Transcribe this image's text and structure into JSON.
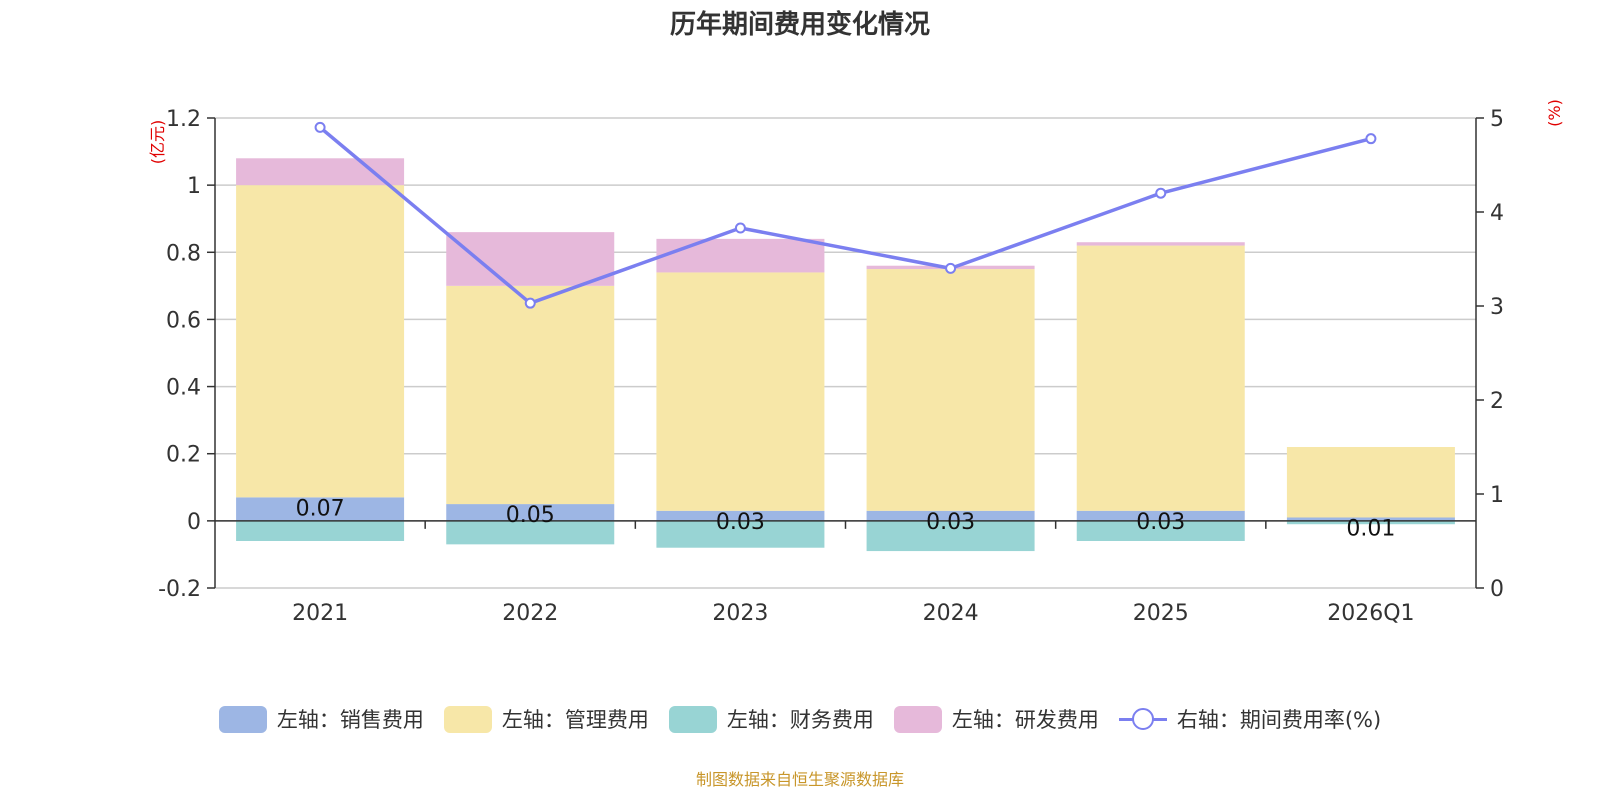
{
  "chart_data": {
    "type": "bar",
    "title": "历年期间费用变化情况",
    "categories": [
      "2021",
      "2022",
      "2023",
      "2024",
      "2025",
      "2026Q1"
    ],
    "ylabel_left": "(亿元)",
    "ylabel_right": "(%)",
    "ylim_left": [
      -0.2,
      1.2
    ],
    "yticks_left": [
      "1.2",
      "1",
      "0.8",
      "0.6",
      "0.4",
      "0.2",
      "0",
      "-0.2"
    ],
    "ylim_right": [
      0,
      5
    ],
    "yticks_right": [
      "5",
      "4",
      "3",
      "2",
      "1",
      "0"
    ],
    "series": [
      {
        "name": "左轴：销售费用",
        "axis": "left",
        "color": "#9db6e4",
        "values": [
          0.07,
          0.05,
          0.03,
          0.03,
          0.03,
          0.01
        ],
        "labels": [
          "0.07",
          "0.05",
          "0.03",
          "0.03",
          "0.03",
          "0.01"
        ]
      },
      {
        "name": "左轴：管理费用",
        "axis": "left",
        "color": "#f7e7a8",
        "values": [
          0.93,
          0.65,
          0.71,
          0.72,
          0.79,
          0.21
        ]
      },
      {
        "name": "左轴：财务费用",
        "axis": "left",
        "color": "#98d4d4",
        "values": [
          -0.06,
          -0.07,
          -0.08,
          -0.09,
          -0.06,
          -0.01
        ]
      },
      {
        "name": "左轴：研发费用",
        "axis": "left",
        "color": "#e6b9da",
        "values": [
          0.08,
          0.16,
          0.1,
          0.01,
          0.01,
          0.0
        ]
      },
      {
        "name": "右轴：期间费用率(%)",
        "axis": "right",
        "type": "line",
        "color": "#7b7ff0",
        "values": [
          4.9,
          3.03,
          3.83,
          3.4,
          4.2,
          4.78
        ]
      }
    ]
  },
  "legend": [
    {
      "label": "左轴：销售费用",
      "color": "#9db6e4",
      "kind": "bar"
    },
    {
      "label": "左轴：管理费用",
      "color": "#f7e7a8",
      "kind": "bar"
    },
    {
      "label": "左轴：财务费用",
      "color": "#98d4d4",
      "kind": "bar"
    },
    {
      "label": "左轴：研发费用",
      "color": "#e6b9da",
      "kind": "bar"
    },
    {
      "label": "右轴：期间费用率(%)",
      "color": "#7b7ff0",
      "kind": "line"
    }
  ],
  "source": "制图数据来自恒生聚源数据库"
}
